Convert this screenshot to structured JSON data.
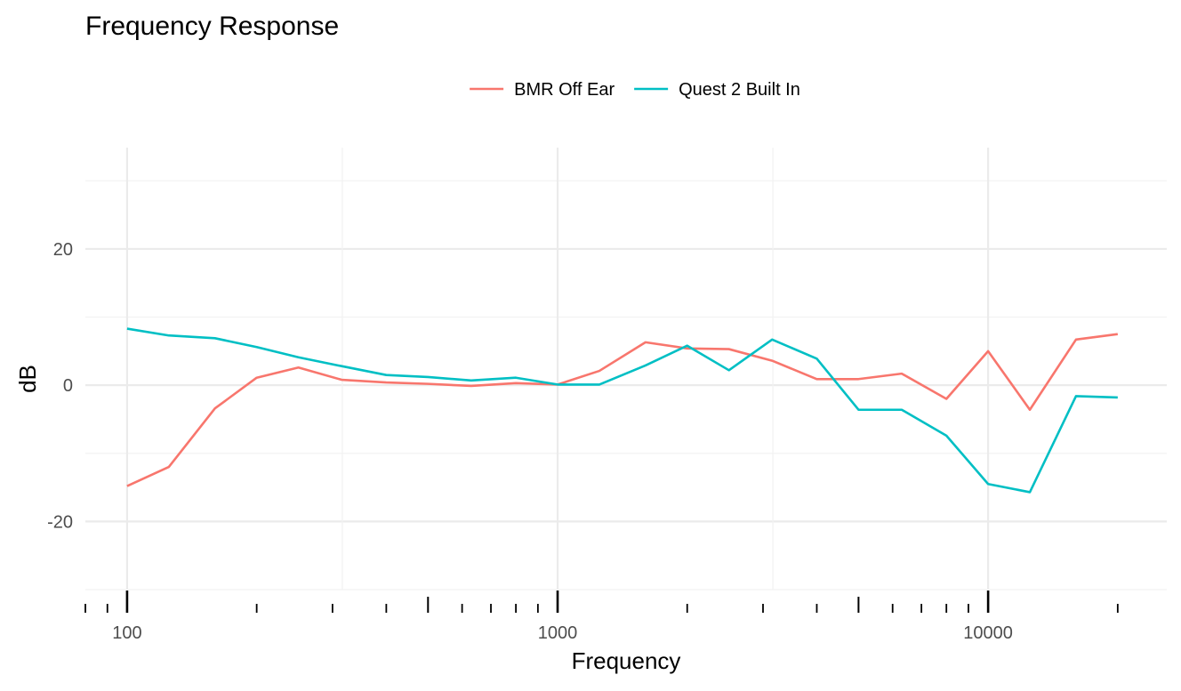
{
  "chart_data": {
    "type": "line",
    "title": "Frequency Response",
    "xlabel": "Frequency",
    "ylabel": "dB",
    "x_scale": "log10",
    "xlim": [
      80,
      26000
    ],
    "ylim": [
      -30,
      32
    ],
    "y_ticks": [
      -20,
      0,
      20
    ],
    "y_minor_ticks": [
      -30,
      -10,
      10,
      30
    ],
    "x_tick_labels": [
      {
        "value": 100,
        "label": "100"
      },
      {
        "value": 1000,
        "label": "1000"
      },
      {
        "value": 10000,
        "label": "10000"
      }
    ],
    "x_major_grid": [
      100,
      1000,
      10000
    ],
    "x_minor_grid": [
      316.2,
      3162.3
    ],
    "x_log_ticks": {
      "decade": [
        100,
        1000,
        10000
      ],
      "mid": [
        500,
        5000
      ],
      "minor": [
        80,
        90,
        200,
        300,
        400,
        600,
        700,
        800,
        900,
        2000,
        3000,
        4000,
        6000,
        7000,
        8000,
        9000,
        20000
      ]
    },
    "grid": true,
    "legend_position": "top",
    "series": [
      {
        "name": "BMR Off Ear",
        "color": "#F8766D",
        "points": [
          [
            100,
            -14.8
          ],
          [
            125,
            -12.0
          ],
          [
            160,
            -3.4
          ],
          [
            200,
            1.1
          ],
          [
            250,
            2.6
          ],
          [
            315,
            0.8
          ],
          [
            400,
            0.4
          ],
          [
            500,
            0.2
          ],
          [
            630,
            -0.1
          ],
          [
            800,
            0.3
          ],
          [
            1000,
            0.1
          ],
          [
            1250,
            2.1
          ],
          [
            1600,
            6.3
          ],
          [
            2000,
            5.4
          ],
          [
            2500,
            5.3
          ],
          [
            3150,
            3.6
          ],
          [
            4000,
            0.9
          ],
          [
            5000,
            0.9
          ],
          [
            6300,
            1.7
          ],
          [
            8000,
            -2.0
          ],
          [
            10000,
            5.0
          ],
          [
            12500,
            -3.6
          ],
          [
            16000,
            6.7
          ],
          [
            20000,
            7.5
          ]
        ]
      },
      {
        "name": "Quest 2 Built In",
        "color": "#00BFC4",
        "points": [
          [
            100,
            8.3
          ],
          [
            125,
            7.3
          ],
          [
            160,
            6.9
          ],
          [
            200,
            5.6
          ],
          [
            250,
            4.1
          ],
          [
            315,
            2.8
          ],
          [
            400,
            1.5
          ],
          [
            500,
            1.2
          ],
          [
            630,
            0.7
          ],
          [
            800,
            1.1
          ],
          [
            1000,
            0.1
          ],
          [
            1250,
            0.1
          ],
          [
            1600,
            2.9
          ],
          [
            2000,
            5.8
          ],
          [
            2500,
            2.2
          ],
          [
            3150,
            6.7
          ],
          [
            4000,
            3.9
          ],
          [
            5000,
            -3.6
          ],
          [
            6300,
            -3.6
          ],
          [
            8000,
            -7.4
          ],
          [
            10000,
            -14.5
          ],
          [
            12500,
            -15.7
          ],
          [
            16000,
            -1.6
          ],
          [
            20000,
            -1.8
          ]
        ]
      }
    ]
  }
}
